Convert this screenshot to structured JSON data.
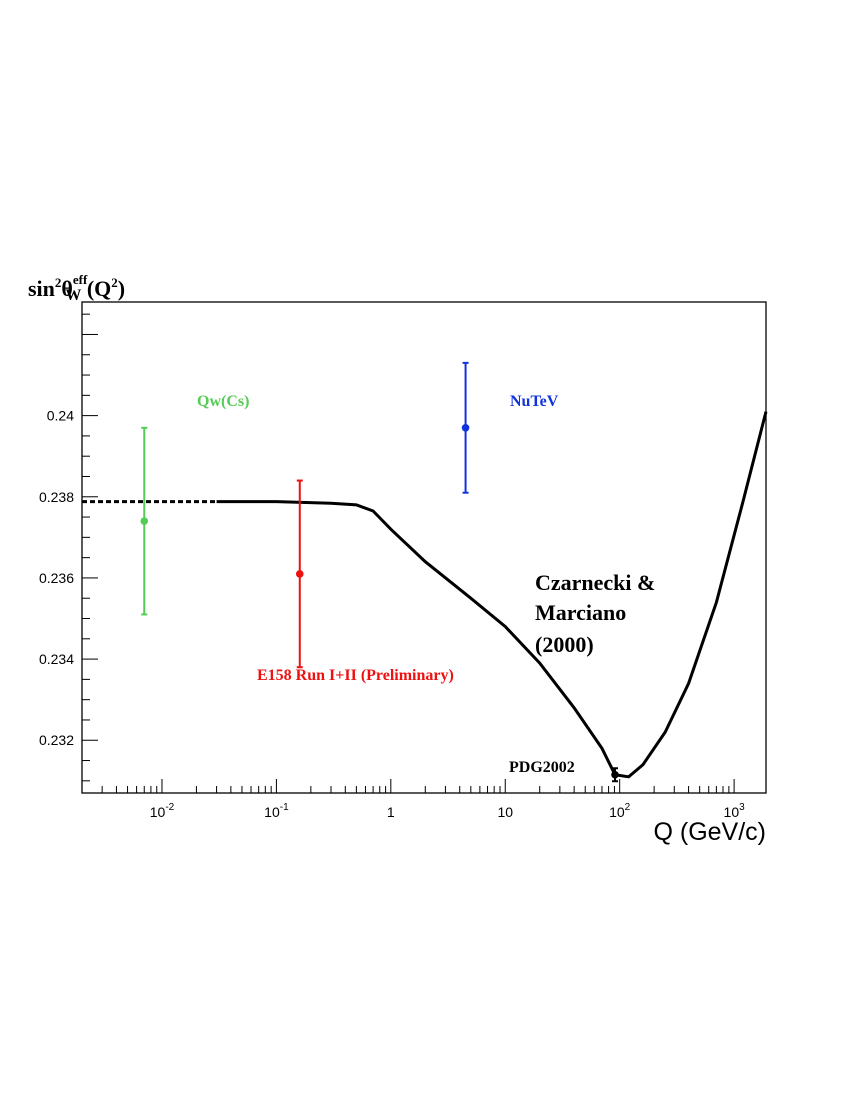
{
  "chart_data": {
    "type": "scatter",
    "title": "",
    "xlabel": "Q (GeV/c)",
    "ylabel": {
      "base": "sin",
      "sup1": "2",
      "theta": "θ",
      "eff": "eff",
      "sub": "W",
      "arg": "(Q",
      "sup2": "2",
      "close": ")"
    },
    "x_scale": "log",
    "xlim": [
      0.002,
      1900
    ],
    "ylim": [
      0.2307,
      0.2428
    ],
    "x_ticks": [
      {
        "value": 0.01,
        "base": "10",
        "exp": "-2"
      },
      {
        "value": 0.1,
        "base": "10",
        "exp": "-1"
      },
      {
        "value": 1,
        "base": "1",
        "exp": ""
      },
      {
        "value": 10,
        "base": "10",
        "exp": ""
      },
      {
        "value": 100,
        "base": "10",
        "exp": "2"
      },
      {
        "value": 1000,
        "base": "10",
        "exp": "3"
      }
    ],
    "y_ticks": [
      "0.232",
      "0.234",
      "0.236",
      "0.238",
      "0.240"
    ],
    "y_tick_labels": [
      "0.232",
      "0.234",
      "0.236",
      "0.238",
      "0.24"
    ],
    "grid": false,
    "curve": {
      "name": "Czarnecki & Marciano (2000)",
      "color": "#000000",
      "dashed_until": 0.03,
      "points": [
        [
          0.002,
          0.23788
        ],
        [
          0.01,
          0.23788
        ],
        [
          0.03,
          0.23788
        ],
        [
          0.1,
          0.23788
        ],
        [
          0.3,
          0.23784
        ],
        [
          0.5,
          0.2378
        ],
        [
          0.7,
          0.23765
        ],
        [
          1,
          0.2372
        ],
        [
          2,
          0.2364
        ],
        [
          5,
          0.2355
        ],
        [
          10,
          0.2348
        ],
        [
          20,
          0.2339
        ],
        [
          40,
          0.2328
        ],
        [
          70,
          0.2318
        ],
        [
          91,
          0.23115
        ],
        [
          120,
          0.2311
        ],
        [
          160,
          0.2314
        ],
        [
          250,
          0.2322
        ],
        [
          400,
          0.2334
        ],
        [
          700,
          0.2354
        ],
        [
          1200,
          0.2379
        ],
        [
          1900,
          0.2401
        ]
      ]
    },
    "points": [
      {
        "name": "Qw(Cs)",
        "x": 0.007,
        "y": 0.2374,
        "err_low": 0.2351,
        "err_high": 0.2397,
        "color": "#55cc55"
      },
      {
        "name": "E158 Run I+II (Preliminary)",
        "x": 0.16,
        "y": 0.2361,
        "err_low": 0.2338,
        "err_high": 0.2384,
        "color": "#ee1111"
      },
      {
        "name": "NuTeV",
        "x": 4.5,
        "y": 0.2397,
        "err_low": 0.2381,
        "err_high": 0.2413,
        "color": "#1133dd"
      },
      {
        "name": "PDG2002",
        "x": 91,
        "y": 0.23115,
        "err_low": 0.23099,
        "err_high": 0.23131,
        "color": "#000000"
      }
    ],
    "annotations": [
      {
        "text": "Qw(Cs)",
        "color": "#55cc55"
      },
      {
        "text": "NuTeV",
        "color": "#1133dd"
      },
      {
        "text": "E158 Run I+II (Preliminary)",
        "color": "#ee1111"
      },
      {
        "text": "Czarnecki &",
        "color": "#000000"
      },
      {
        "text": "Marciano",
        "color": "#000000"
      },
      {
        "text": "(2000)",
        "color": "#000000"
      },
      {
        "text": "PDG2002",
        "color": "#000000"
      }
    ]
  }
}
